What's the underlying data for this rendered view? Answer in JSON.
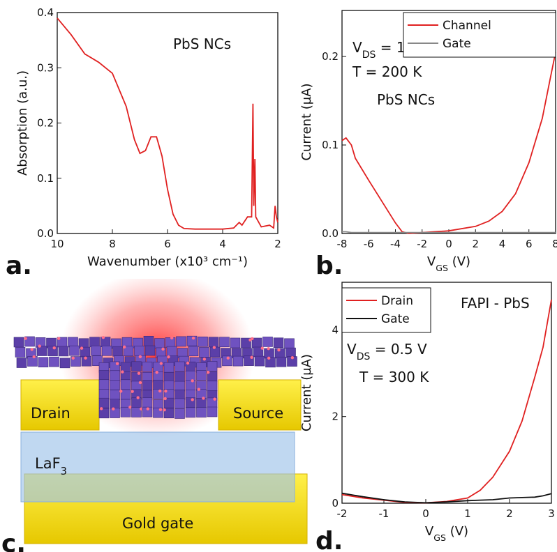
{
  "chart_data": [
    {
      "type": "line",
      "panel_label": "a.",
      "xlabel": "Wavenumber (x10³ cm⁻¹)",
      "ylabel": "Absorption (a.u.)",
      "xlim": [
        10,
        2
      ],
      "ylim": [
        0,
        0.4
      ],
      "xticks": [
        10,
        8,
        6,
        4,
        2
      ],
      "yticks": [
        {
          "value": 0,
          "label": "0.0"
        },
        0.1,
        0.2,
        0.3,
        0.4
      ],
      "annotations": [
        [
          "PbS NCs"
        ]
      ],
      "x": [
        10,
        9.5,
        9,
        8.5,
        8,
        7.5,
        7.2,
        7,
        6.8,
        6.6,
        6.4,
        6.2,
        6,
        5.8,
        5.6,
        5.4,
        5,
        4.5,
        4,
        3.6,
        3.4,
        3.3,
        3.1,
        2.95,
        2.9,
        2.87,
        2.83,
        2.8,
        2.6,
        2.3,
        2.15,
        2.1,
        2.05,
        2
      ],
      "series": [
        {
          "color": "#e02020",
          "values": [
            0.39,
            0.36,
            0.325,
            0.31,
            0.29,
            0.23,
            0.17,
            0.145,
            0.15,
            0.175,
            0.175,
            0.14,
            0.08,
            0.035,
            0.015,
            0.009,
            0.008,
            0.008,
            0.008,
            0.01,
            0.02,
            0.015,
            0.03,
            0.03,
            0.235,
            0.05,
            0.135,
            0.03,
            0.012,
            0.015,
            0.01,
            0.05,
            0.03,
            0.02
          ]
        }
      ]
    },
    {
      "type": "line",
      "panel_label": "b.",
      "xlabel": [
        "V",
        "GS",
        " (V)"
      ],
      "ylabel": "Current (µA)",
      "xlim": [
        -8,
        8
      ],
      "ylim": [
        0,
        0.252
      ],
      "xticks": [
        -8,
        -6,
        -4,
        -2,
        0,
        2,
        4,
        6,
        8
      ],
      "yticks": [
        {
          "value": 0,
          "label": "0.0"
        },
        0.1,
        0.2
      ],
      "legend": "upper right",
      "annotations": [
        [
          "V",
          "DS",
          " = 1 V"
        ],
        [
          "T = 200 K"
        ],
        [
          "PbS NCs"
        ]
      ],
      "x": [
        -8,
        -7.7,
        -7.3,
        -7,
        -6,
        -5,
        -4,
        -3.5,
        -3,
        -2,
        0,
        2,
        3,
        4,
        5,
        6,
        7,
        7.6,
        8
      ],
      "series": [
        {
          "name": "Channel",
          "color": "#e02020",
          "values": [
            0.105,
            0.108,
            0.1,
            0.085,
            0.06,
            0.036,
            0.012,
            0.002,
            0,
            0.001,
            0.003,
            0.008,
            0.014,
            0.025,
            0.045,
            0.08,
            0.13,
            0.175,
            0.205
          ]
        },
        {
          "name": "Gate",
          "color": "#888888",
          "values": [
            0.002,
            0.002,
            0.001,
            0.001,
            0.001,
            0.001,
            0.001,
            0.001,
            0.001,
            0.001,
            0.001,
            0.001,
            0.001,
            0.001,
            0.001,
            0.001,
            0.001,
            0.001,
            0.001
          ]
        }
      ]
    },
    {
      "type": "line",
      "panel_label": "d.",
      "xlabel": [
        "V",
        "GS",
        " (V)"
      ],
      "ylabel": "Current (µA)",
      "xlim": [
        -2,
        3
      ],
      "ylim": [
        0,
        5.1
      ],
      "xticks": [
        -2,
        -1,
        0,
        1,
        2,
        3
      ],
      "yticks": [
        0,
        2,
        4
      ],
      "legend": "upper left",
      "annotations": [
        [
          "FAPI - PbS"
        ],
        [
          "V",
          "DS",
          " = 0.5 V"
        ],
        [
          "T = 300 K"
        ]
      ],
      "x": [
        -2,
        -1.5,
        -1,
        -0.5,
        0,
        0.5,
        1,
        1.3,
        1.6,
        2,
        2.3,
        2.6,
        2.8,
        3
      ],
      "series": [
        {
          "name": "Drain",
          "color": "#e02020",
          "values": [
            0.2,
            0.12,
            0.07,
            0.02,
            0.01,
            0.04,
            0.12,
            0.3,
            0.6,
            1.2,
            1.9,
            2.9,
            3.6,
            4.7
          ]
        },
        {
          "name": "Gate",
          "color": "#111111",
          "values": [
            0.23,
            0.15,
            0.08,
            0.03,
            0.01,
            0.03,
            0.06,
            0.07,
            0.08,
            0.12,
            0.13,
            0.14,
            0.17,
            0.22
          ]
        }
      ]
    }
  ],
  "diagram": {
    "panel_label": "c.",
    "drain": "Drain",
    "source": "Source",
    "dielectric": [
      "LaF",
      "3"
    ],
    "gate": "Gold gate"
  }
}
